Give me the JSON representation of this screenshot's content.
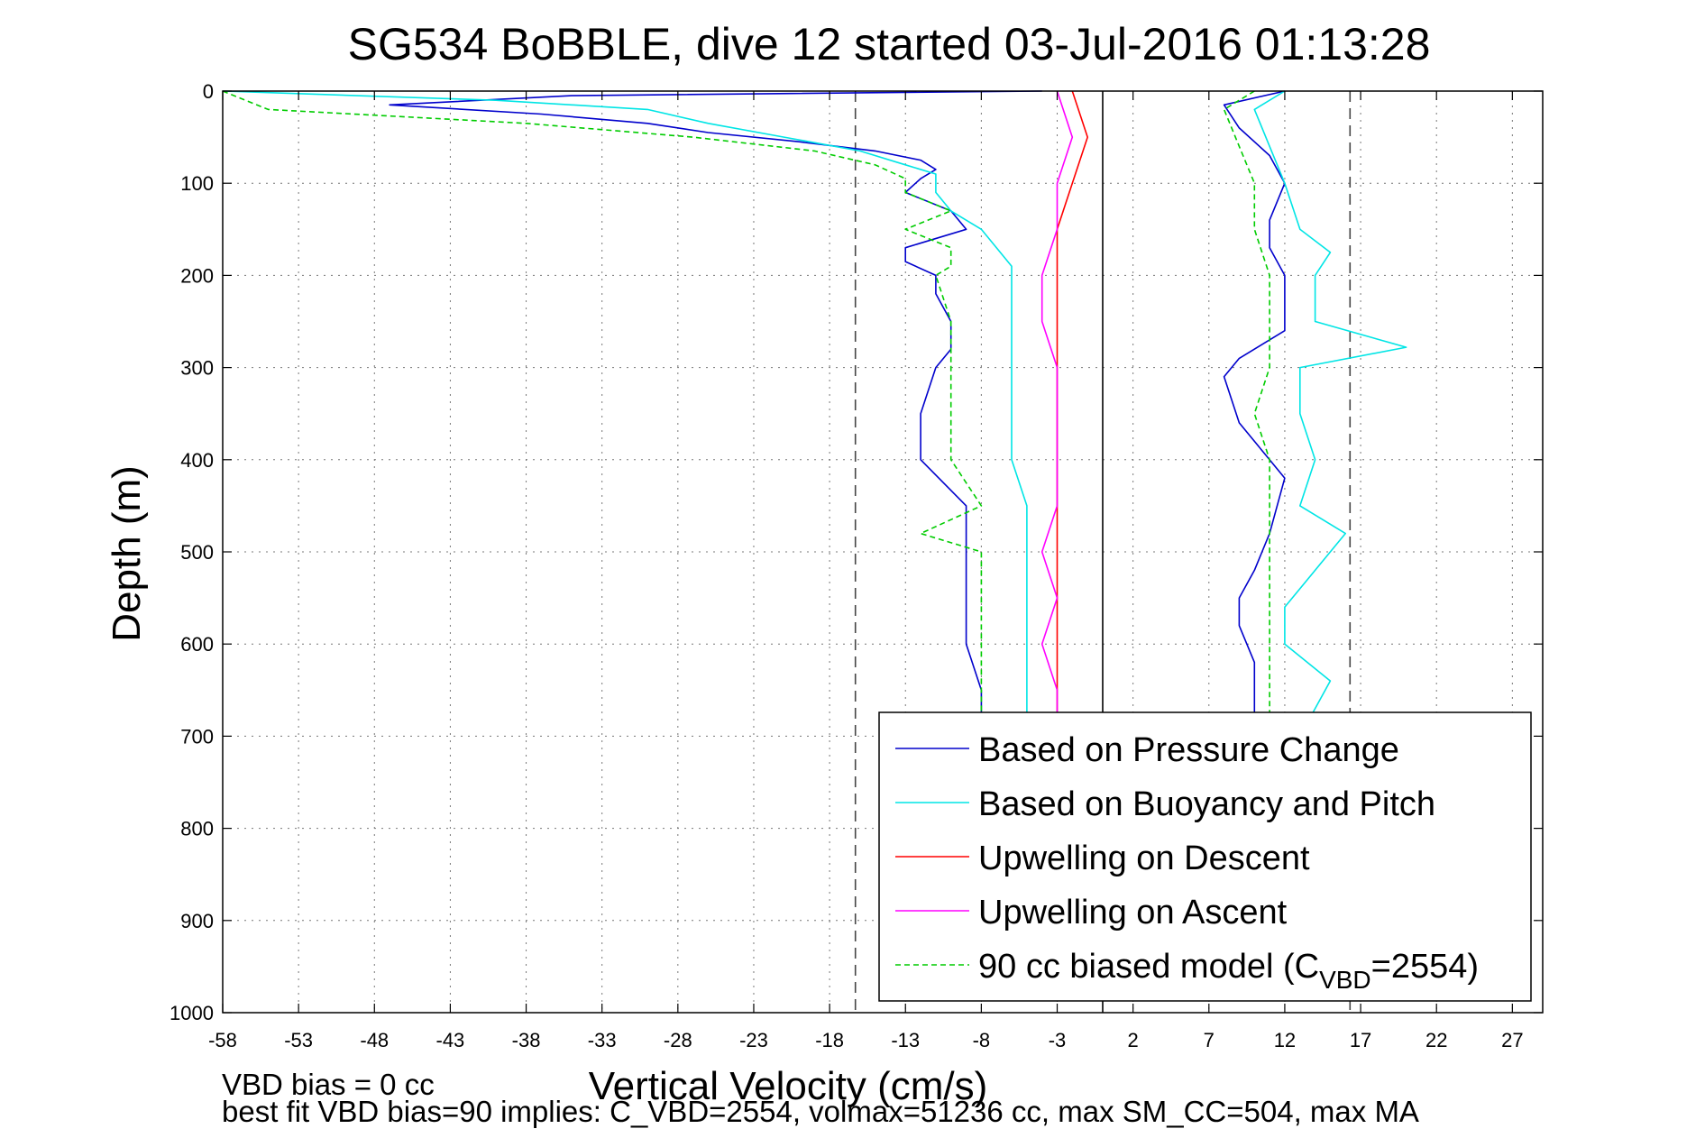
{
  "chart_data": {
    "type": "line",
    "title": "SG534 BoBBLE, dive 12 started 03-Jul-2016 01:13:28",
    "xlabel": "Vertical Velocity (cm/s)",
    "ylabel": "Depth (m)",
    "xlim": [
      -58,
      29
    ],
    "ylim": [
      0,
      1000
    ],
    "y_reversed": true,
    "grid": true,
    "legend_position": "bottom-right",
    "x_ticks": [
      -58,
      -53,
      -48,
      -43,
      -38,
      -33,
      -28,
      -23,
      -18,
      -13,
      -8,
      -3,
      2,
      7,
      12,
      17,
      22,
      27
    ],
    "y_ticks": [
      0,
      100,
      200,
      300,
      400,
      500,
      600,
      700,
      800,
      900,
      1000
    ],
    "reference_lines": [
      {
        "x": -16.3,
        "style": "dashed",
        "color": "#444444"
      },
      {
        "x": 0,
        "style": "solid",
        "color": "#000000"
      },
      {
        "x": 16.3,
        "style": "dashed",
        "color": "#444444"
      }
    ],
    "annotations": [
      "VBD bias = 0 cc",
      "best fit VBD bias=90 implies: C_VBD=2554, volmax=51236 cc, max SM_CC=504, max MA"
    ],
    "series": [
      {
        "name": "Based on Pressure Change",
        "color": "#0000cc",
        "style": "solid",
        "branches": [
          {
            "depth": [
              0,
              5,
              15,
              25,
              35,
              45,
              55,
              65,
              75,
              85,
              95,
              110,
              130,
              150,
              170,
              185,
              200,
              220,
              250,
              280,
              300,
              350,
              400,
              450,
              480,
              500,
              550,
              600,
              650,
              700
            ],
            "velocity": [
              -4,
              -35,
              -47,
              -37,
              -30,
              -26,
              -20,
              -15,
              -12,
              -11,
              -12,
              -13,
              -10,
              -9,
              -13,
              -13,
              -11,
              -11,
              -10,
              -10,
              -11,
              -12,
              -12,
              -9,
              -9,
              -9,
              -9,
              -9,
              -8,
              -8
            ]
          },
          {
            "depth": [
              0,
              15,
              40,
              70,
              100,
              140,
              170,
              200,
              260,
              290,
              310,
              360,
              420,
              480,
              520,
              550,
              580,
              620,
              700
            ],
            "velocity": [
              12,
              8,
              9,
              11,
              12,
              11,
              11,
              12,
              12,
              9,
              8,
              9,
              12,
              11,
              10,
              9,
              9,
              10,
              10
            ]
          }
        ]
      },
      {
        "name": "Based on Buoyancy and Pitch",
        "color": "#00e5e5",
        "style": "solid",
        "branches": [
          {
            "depth": [
              0,
              10,
              20,
              35,
              50,
              65,
              80,
              90,
              110,
              130,
              150,
              170,
              190,
              210,
              250,
              300,
              350,
              400,
              450,
              500,
              550,
              600,
              700
            ],
            "velocity": [
              -58,
              -40,
              -30,
              -26,
              -21,
              -16,
              -13,
              -11,
              -11,
              -10,
              -8,
              -7,
              -6,
              -6,
              -6,
              -6,
              -6,
              -6,
              -5,
              -5,
              -5,
              -5,
              -5
            ]
          },
          {
            "depth": [
              0,
              20,
              60,
              100,
              150,
              175,
              200,
              250,
              278,
              300,
              350,
              400,
              450,
              480,
              520,
              560,
              600,
              640,
              700
            ],
            "velocity": [
              12,
              10,
              11,
              12,
              13,
              15,
              14,
              14,
              20,
              13,
              13,
              14,
              13,
              16,
              14,
              12,
              12,
              15,
              13
            ]
          }
        ]
      },
      {
        "name": "Upwelling on Descent",
        "color": "#ff0000",
        "style": "solid",
        "branches": [
          {
            "depth": [
              0,
              50,
              100,
              150,
              200,
              250,
              300,
              350,
              400,
              450,
              500,
              550,
              600,
              650,
              700
            ],
            "velocity": [
              -2,
              -1,
              -2,
              -3,
              -3,
              -3,
              -3,
              -3,
              -3,
              -3,
              -3,
              -3,
              -3,
              -3,
              -3
            ]
          }
        ]
      },
      {
        "name": "Upwelling on Ascent",
        "color": "#ff00ff",
        "style": "solid",
        "branches": [
          {
            "depth": [
              0,
              50,
              100,
              150,
              200,
              250,
              300,
              350,
              400,
              450,
              500,
              550,
              600,
              650,
              700
            ],
            "velocity": [
              -3,
              -2,
              -3,
              -3,
              -4,
              -4,
              -3,
              -3,
              -3,
              -3,
              -4,
              -3,
              -4,
              -3,
              -3
            ]
          }
        ]
      },
      {
        "name": "90 cc biased model (C_VBD=2554)",
        "color": "#00cc00",
        "style": "dashed",
        "branches": [
          {
            "depth": [
              0,
              20,
              35,
              50,
              65,
              80,
              95,
              110,
              130,
              150,
              170,
              190,
              200,
              250,
              300,
              350,
              400,
              450,
              480,
              500,
              550,
              600,
              620,
              700
            ],
            "velocity": [
              -58,
              -55,
              -38,
              -27,
              -19,
              -15,
              -13,
              -13,
              -10,
              -13,
              -10,
              -10,
              -11,
              -10,
              -10,
              -10,
              -10,
              -8,
              -12,
              -8,
              -8,
              -8,
              -8,
              -8
            ]
          },
          {
            "depth": [
              0,
              20,
              60,
              100,
              150,
              200,
              250,
              300,
              350,
              400,
              450,
              500,
              550,
              600,
              650,
              700
            ],
            "velocity": [
              10,
              8,
              9,
              10,
              10,
              11,
              11,
              11,
              10,
              11,
              11,
              11,
              11,
              11,
              11,
              11
            ]
          }
        ]
      }
    ],
    "legend": [
      {
        "label": "Based on Pressure Change",
        "color": "#0000cc",
        "style": "solid"
      },
      {
        "label": "Based on Buoyancy and Pitch",
        "color": "#00e5e5",
        "style": "solid"
      },
      {
        "label": "Upwelling on Descent",
        "color": "#ff0000",
        "style": "solid"
      },
      {
        "label": "Upwelling on Ascent",
        "color": "#ff00ff",
        "style": "solid"
      },
      {
        "label": "90 cc biased model (C",
        "sub": "VBD",
        "suffix": "=2554)",
        "color": "#00cc00",
        "style": "dashed"
      }
    ]
  }
}
